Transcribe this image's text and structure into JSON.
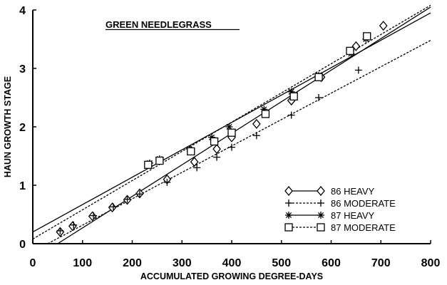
{
  "chart_data": {
    "type": "scatter",
    "title": "GREEN NEEDLEGRASS",
    "xlabel": "ACCUMULATED GROWING DEGREE-DAYS",
    "ylabel": "HAUN GROWTH STAGE",
    "xlim": [
      0,
      800
    ],
    "ylim": [
      0,
      4
    ],
    "x_ticks": [
      0,
      100,
      200,
      300,
      400,
      500,
      600,
      700,
      800
    ],
    "y_ticks": [
      0,
      1,
      2,
      3,
      4
    ],
    "grid": false,
    "legend_position": "bottom-right",
    "series": [
      {
        "name": "86 HEAVY",
        "marker": "diamond",
        "line_style": "solid",
        "points": [
          [
            55,
            0.2
          ],
          [
            80,
            0.3
          ],
          [
            120,
            0.47
          ],
          [
            160,
            0.62
          ],
          [
            190,
            0.75
          ],
          [
            215,
            0.86
          ],
          [
            270,
            1.1
          ],
          [
            325,
            1.4
          ],
          [
            370,
            1.62
          ],
          [
            400,
            1.82
          ],
          [
            450,
            2.05
          ],
          [
            520,
            2.45
          ],
          [
            580,
            2.85
          ],
          [
            650,
            3.38
          ],
          [
            705,
            3.73
          ]
        ],
        "fit_line": [
          [
            50,
            0
          ],
          [
            800,
            4.05
          ]
        ]
      },
      {
        "name": "86 MODERATE",
        "marker": "plus",
        "line_style": "dashed",
        "points": [
          [
            55,
            0.22
          ],
          [
            82,
            0.32
          ],
          [
            122,
            0.48
          ],
          [
            162,
            0.63
          ],
          [
            190,
            0.76
          ],
          [
            215,
            0.85
          ],
          [
            270,
            1.05
          ],
          [
            330,
            1.3
          ],
          [
            370,
            1.48
          ],
          [
            400,
            1.65
          ],
          [
            450,
            1.85
          ],
          [
            520,
            2.2
          ],
          [
            575,
            2.5
          ],
          [
            655,
            2.97
          ]
        ],
        "fit_line": [
          [
            30,
            0
          ],
          [
            800,
            3.48
          ]
        ]
      },
      {
        "name": "87 HEAVY",
        "marker": "asterisk",
        "line_style": "solid",
        "points": [
          [
            235,
            1.38
          ],
          [
            255,
            1.45
          ],
          [
            315,
            1.62
          ],
          [
            360,
            1.82
          ],
          [
            395,
            2.0
          ],
          [
            465,
            2.3
          ],
          [
            520,
            2.6
          ],
          [
            575,
            2.88
          ],
          [
            640,
            3.25
          ],
          [
            670,
            3.5
          ]
        ],
        "fit_line": [
          [
            0,
            0.2
          ],
          [
            800,
            3.95
          ]
        ]
      },
      {
        "name": "87 MODERATE",
        "marker": "square",
        "line_style": "dashed",
        "points": [
          [
            232,
            1.35
          ],
          [
            255,
            1.42
          ],
          [
            318,
            1.58
          ],
          [
            365,
            1.75
          ],
          [
            400,
            1.9
          ],
          [
            468,
            2.22
          ],
          [
            525,
            2.52
          ],
          [
            575,
            2.85
          ],
          [
            638,
            3.3
          ],
          [
            672,
            3.55
          ]
        ],
        "fit_line": [
          [
            0,
            0.08
          ],
          [
            800,
            4.08
          ]
        ]
      }
    ]
  }
}
